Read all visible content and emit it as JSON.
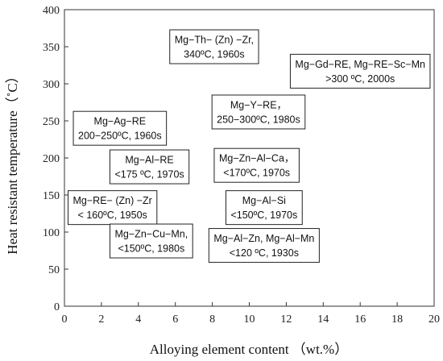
{
  "chart_data": {
    "type": "scatter",
    "title": "",
    "xlabel": "Alloying element content （wt.%）",
    "ylabel": "Heat resistant temperature（˚C）",
    "xlim": [
      0,
      20
    ],
    "ylim": [
      0,
      400
    ],
    "xticks": [
      0,
      2,
      4,
      6,
      8,
      10,
      12,
      14,
      16,
      18,
      20
    ],
    "yticks": [
      0,
      50,
      100,
      150,
      200,
      250,
      300,
      350,
      400
    ],
    "grid": false,
    "annotations": [
      {
        "lines": [
          "Mg−Th− (Zn) −Zr,",
          "340ºC, 1960s"
        ],
        "x": 8.1,
        "y": 350
      },
      {
        "lines": [
          "Mg−Gd−RE, Mg−RE−Sc−Mn",
          ">300 ºC, 2000s"
        ],
        "x": 16.0,
        "y": 317
      },
      {
        "lines": [
          "Mg−Y−RE，",
          "250−300ºC, 1980s"
        ],
        "x": 10.5,
        "y": 262
      },
      {
        "lines": [
          "Mg−Ag−RE",
          "200−250ºC, 1960s"
        ],
        "x": 3.0,
        "y": 240
      },
      {
        "lines": [
          "Mg−Zn−Al−Ca，",
          "<170ºC, 1970s"
        ],
        "x": 10.4,
        "y": 190
      },
      {
        "lines": [
          "Mg−Al−RE",
          "<175 ºC, 1970s"
        ],
        "x": 4.6,
        "y": 188
      },
      {
        "lines": [
          "Mg−RE− (Zn) −Zr",
          "< 160ºC, 1950s"
        ],
        "x": 2.6,
        "y": 133
      },
      {
        "lines": [
          "Mg−Al−Si",
          "<150ºC, 1970s"
        ],
        "x": 10.8,
        "y": 133
      },
      {
        "lines": [
          "Mg−Zn−Cu−Mn,",
          "<150ºC, 1980s"
        ],
        "x": 4.7,
        "y": 88
      },
      {
        "lines": [
          "Mg−Al−Zn, Mg−Al−Mn",
          "<120 ºC, 1930s"
        ],
        "x": 10.8,
        "y": 82
      }
    ]
  }
}
